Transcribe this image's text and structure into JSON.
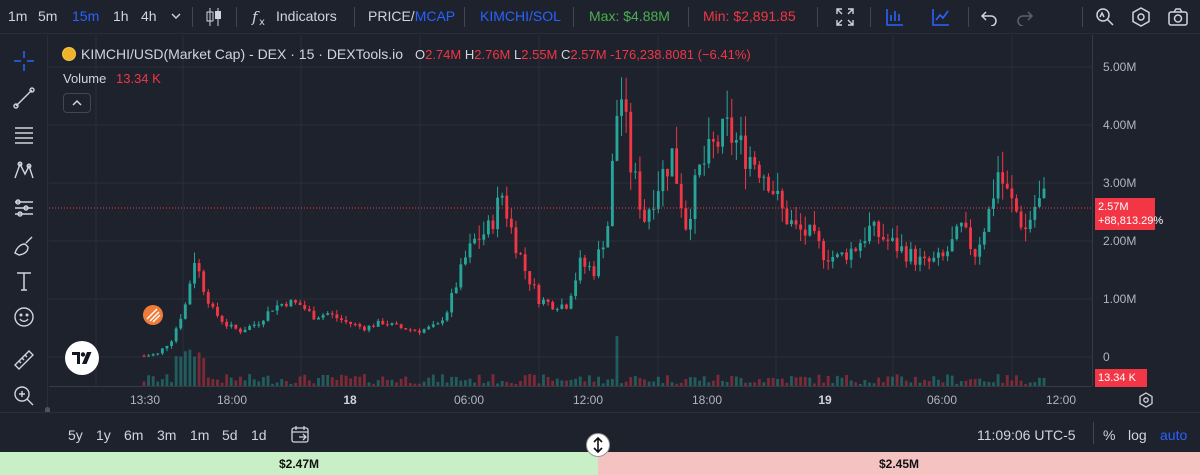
{
  "toolbar": {
    "intervals": [
      "1m",
      "5m",
      "15m",
      "1h",
      "4h"
    ],
    "active_interval": "15m",
    "indicators_label": "Indicators",
    "price_label": "PRICE",
    "price_sep": "/",
    "mcap_label": "MCAP",
    "pair_label": "KIMCHI/SOL",
    "max_label": "Max: $4.88M",
    "min_label": "Min: $2,891.85"
  },
  "legend": {
    "symbol": "KIMCHI/USD(Market Cap) - DEX · 15 · DEXTools.io",
    "o_key": "O",
    "o_val": "2.74M",
    "h_key": "H",
    "h_val": "2.76M",
    "l_key": "L",
    "l_val": "2.55M",
    "c_key": "C",
    "c_val": "2.57M",
    "change": "-176,238.8081 (−6.41%)",
    "volume_label": "Volume",
    "volume_val": "13.34 K"
  },
  "price_scale": {
    "labels": [
      "5.00M",
      "4.00M",
      "3.00M",
      "2.00M",
      "1.00M",
      "0"
    ],
    "last_price": "2.57M",
    "last_change": "+88,813.29%",
    "volume_box": "13.34 K"
  },
  "time_scale": {
    "labels": [
      "13:30",
      "18:00",
      "18",
      "06:00",
      "12:00",
      "18:00",
      "19",
      "06:00",
      "12:00"
    ]
  },
  "bottom": {
    "ranges": [
      "5y",
      "1y",
      "6m",
      "3m",
      "1m",
      "5d",
      "1d"
    ],
    "clock": "11:09:06 UTC-5",
    "percent": "%",
    "log": "log",
    "auto": "auto"
  },
  "footer": {
    "buy_value": "$2.47M",
    "sell_value": "$2.45M"
  },
  "colors": {
    "up": "#26a69a",
    "down": "#f23645",
    "accent": "#2962ff",
    "max_color": "#4caf50",
    "min_color": "#f23645"
  },
  "chart_data": {
    "type": "candlestick",
    "ylim": [
      0,
      5.4
    ],
    "y_unit": "M",
    "last_price": 2.57,
    "y_ticks": [
      0,
      1,
      2,
      3,
      4,
      5
    ],
    "anchors": [
      [
        0,
        0.02
      ],
      [
        3,
        0.05
      ],
      [
        6,
        0.3
      ],
      [
        9,
        0.9
      ],
      [
        11,
        1.7
      ],
      [
        13,
        1.2
      ],
      [
        15,
        0.8
      ],
      [
        18,
        0.55
      ],
      [
        21,
        0.45
      ],
      [
        25,
        0.6
      ],
      [
        28,
        0.85
      ],
      [
        31,
        0.95
      ],
      [
        34,
        0.9
      ],
      [
        37,
        0.7
      ],
      [
        40,
        0.75
      ],
      [
        44,
        0.6
      ],
      [
        48,
        0.5
      ],
      [
        52,
        0.6
      ],
      [
        56,
        0.5
      ],
      [
        60,
        0.45
      ],
      [
        64,
        0.55
      ],
      [
        66,
        0.8
      ],
      [
        70,
        1.7
      ],
      [
        72,
        2.0
      ],
      [
        75,
        2.2
      ],
      [
        78,
        2.8
      ],
      [
        80,
        2.2
      ],
      [
        83,
        1.5
      ],
      [
        86,
        1.0
      ],
      [
        89,
        0.9
      ],
      [
        92,
        0.9
      ],
      [
        95,
        1.6
      ],
      [
        98,
        1.5
      ],
      [
        101,
        2.3
      ],
      [
        103,
        4.2
      ],
      [
        104,
        4.5
      ],
      [
        106,
        3.3
      ],
      [
        109,
        2.4
      ],
      [
        112,
        3.0
      ],
      [
        115,
        3.5
      ],
      [
        118,
        2.3
      ],
      [
        121,
        3.2
      ],
      [
        124,
        3.6
      ],
      [
        127,
        3.9
      ],
      [
        130,
        3.6
      ],
      [
        133,
        3.4
      ],
      [
        136,
        3.1
      ],
      [
        139,
        2.5
      ],
      [
        142,
        2.2
      ],
      [
        145,
        2.1
      ],
      [
        148,
        1.8
      ],
      [
        151,
        1.7
      ],
      [
        155,
        1.9
      ],
      [
        158,
        2.2
      ],
      [
        162,
        2.0
      ],
      [
        166,
        1.8
      ],
      [
        170,
        1.6
      ],
      [
        174,
        1.7
      ],
      [
        178,
        2.2
      ],
      [
        181,
        1.8
      ],
      [
        184,
        2.5
      ],
      [
        186,
        3.2
      ],
      [
        188,
        2.8
      ],
      [
        190,
        2.5
      ],
      [
        192,
        2.2
      ],
      [
        194,
        2.6
      ],
      [
        196,
        2.74
      ]
    ]
  }
}
